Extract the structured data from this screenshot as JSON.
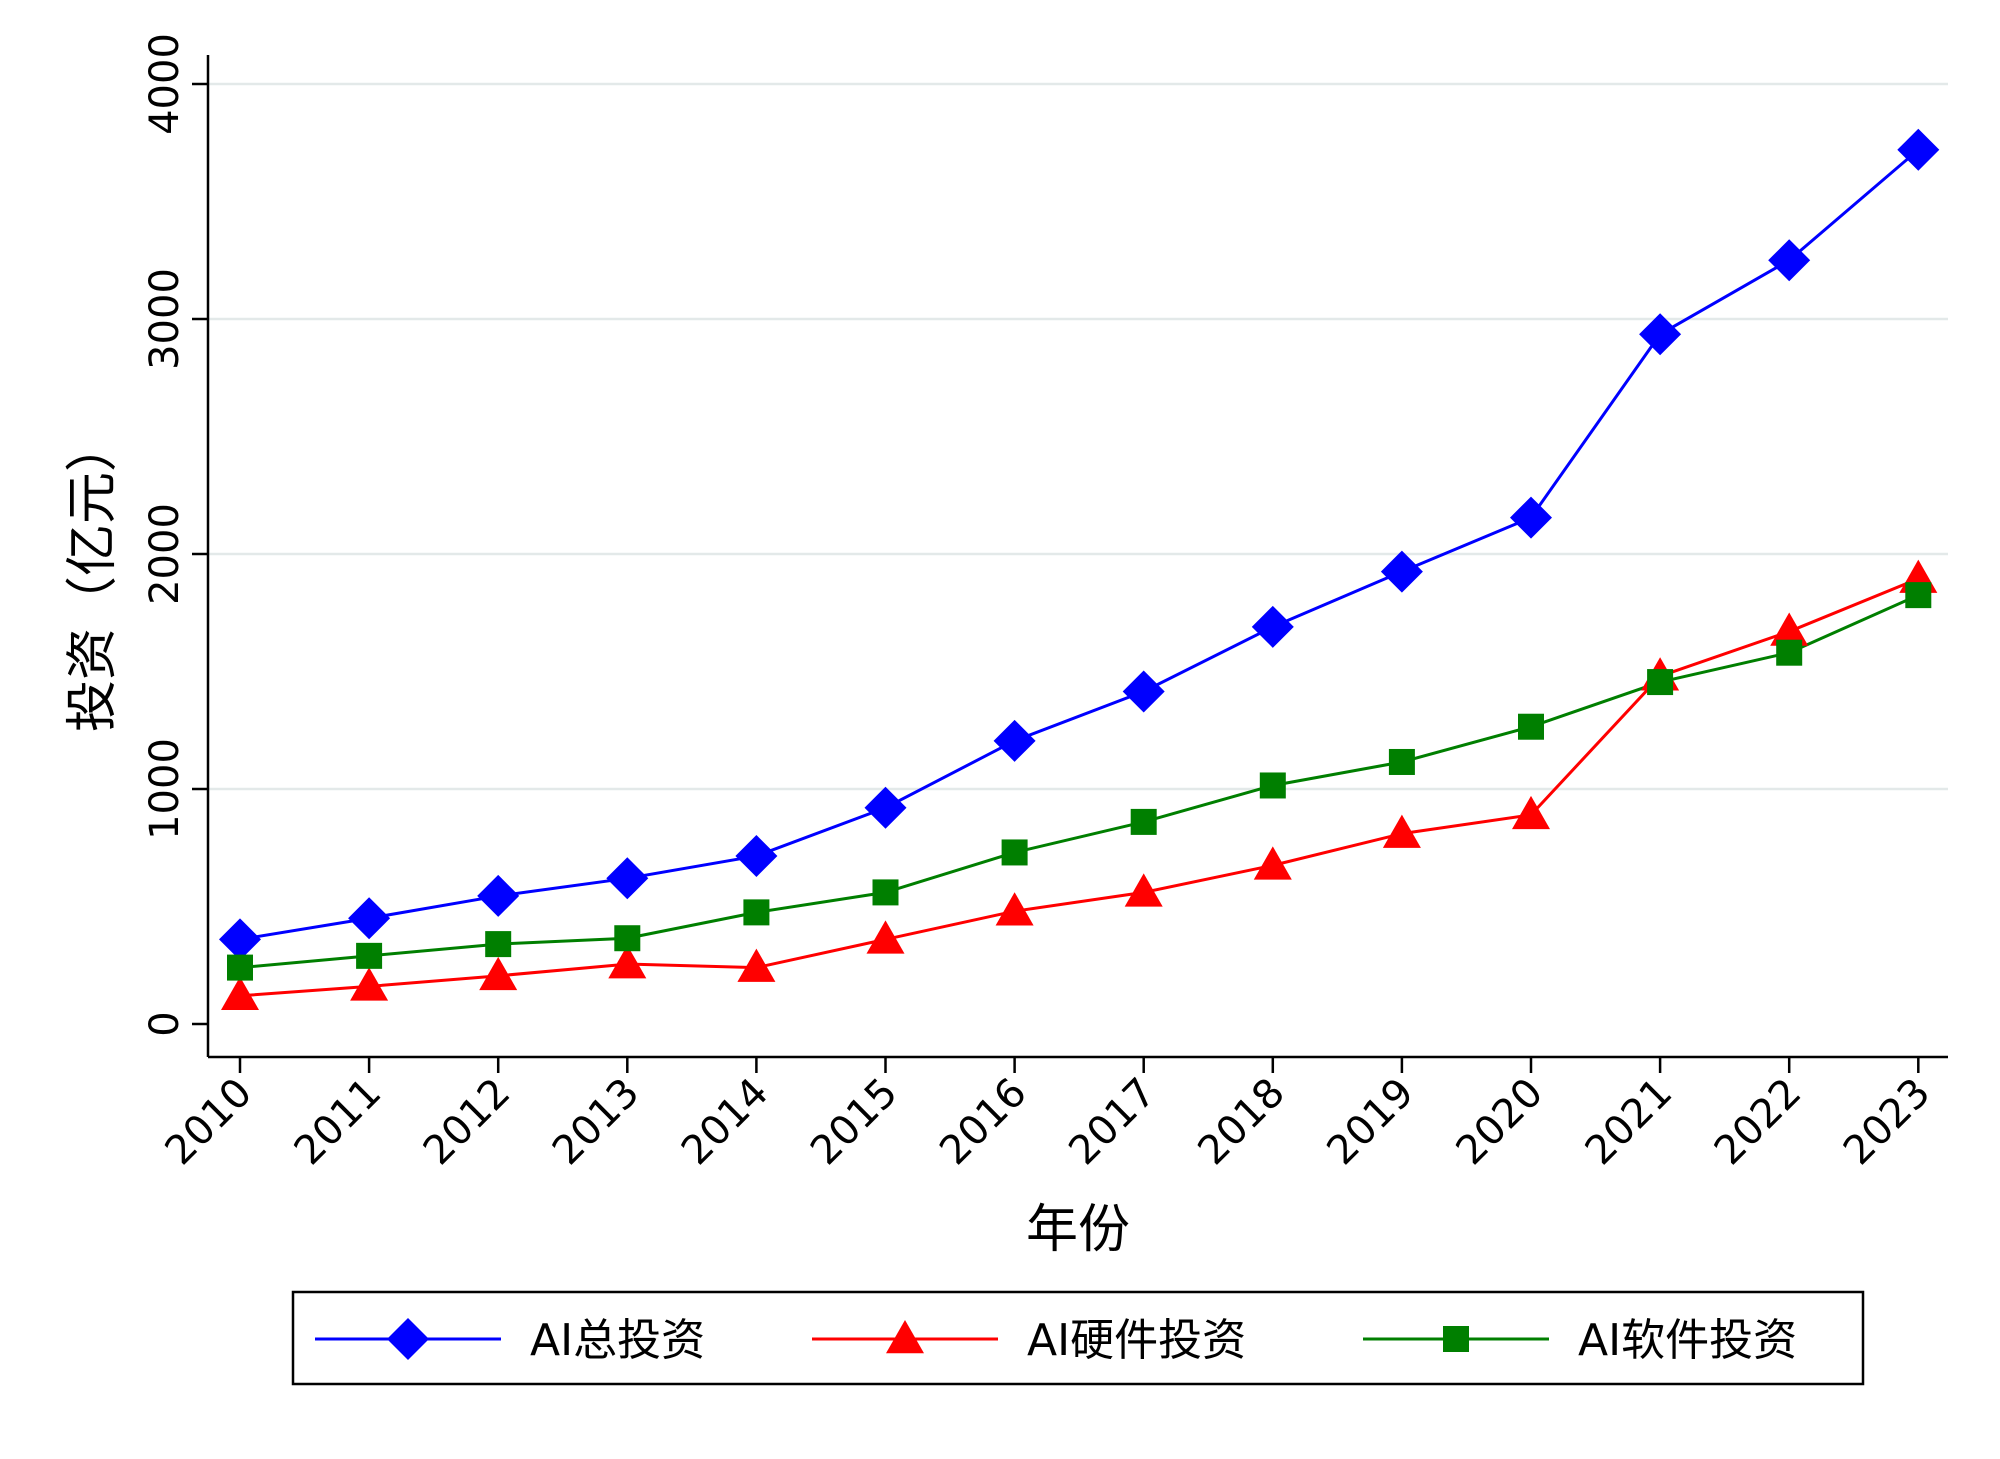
{
  "chart_data": {
    "type": "line",
    "title": "",
    "xlabel": "年份",
    "ylabel": "投资（亿元）",
    "categories": [
      "2010",
      "2011",
      "2012",
      "2013",
      "2014",
      "2015",
      "2016",
      "2017",
      "2018",
      "2019",
      "2020",
      "2021",
      "2022",
      "2023"
    ],
    "ylim": [
      0,
      4000
    ],
    "yticks": [
      "0",
      "1000",
      "2000",
      "3000",
      "4000"
    ],
    "grid": true,
    "legend_position": "bottom",
    "series": [
      {
        "name": "AI总投资",
        "color": "#0000ff",
        "marker": "diamond",
        "values": [
          360,
          450,
          545,
          620,
          715,
          920,
          1205,
          1415,
          1690,
          1925,
          2155,
          2935,
          3250,
          3720
        ]
      },
      {
        "name": "AI硬件投资",
        "color": "#ff0000",
        "marker": "triangle",
        "values": [
          120,
          160,
          205,
          255,
          240,
          360,
          480,
          560,
          675,
          810,
          890,
          1480,
          1670,
          1895
        ]
      },
      {
        "name": "AI软件投资",
        "color": "#007f00",
        "marker": "square",
        "values": [
          240,
          290,
          340,
          365,
          475,
          560,
          730,
          860,
          1015,
          1115,
          1265,
          1455,
          1580,
          1825
        ]
      }
    ]
  }
}
